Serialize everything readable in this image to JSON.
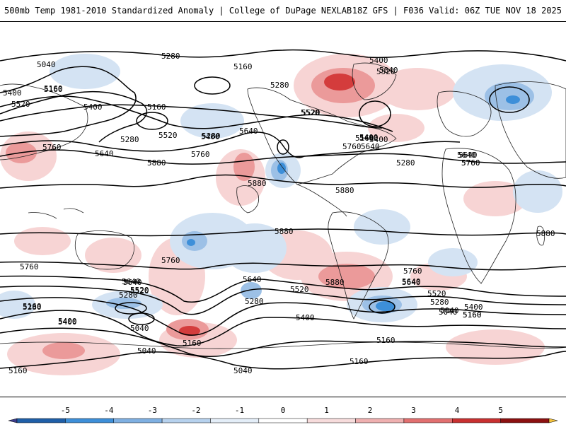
{
  "header": {
    "title": "500mb Temp 1981-2010 Standardized Anomaly | College of DuPage NEXLAB",
    "run_info": "18Z GFS | F036 Valid: 06Z TUE NOV 18 2025"
  },
  "colors": {
    "warm_light": "#f7d4d4",
    "warm_mid": "#eb9a9a",
    "warm_strong": "#d43c3c",
    "cold_light": "#d4e3f3",
    "cold_mid": "#9cc0e6",
    "cold_strong": "#3d8fd9",
    "contour": "#000000",
    "coastline": "#222222"
  },
  "contour_labels": [
    "5040",
    "5280",
    "5160",
    "5400",
    "5520",
    "5280",
    "5160",
    "5280",
    "5520",
    "5400",
    "5160",
    "5640",
    "5520",
    "5280",
    "5400",
    "5640",
    "5760",
    "5880",
    "5760",
    "5640",
    "5280",
    "5160",
    "5040",
    "5400",
    "5520",
    "5760",
    "5400",
    "5640",
    "5880",
    "5880",
    "5880",
    "5760",
    "5640",
    "5760",
    "5640",
    "5520",
    "5280",
    "5280",
    "5640",
    "5520",
    "5760",
    "5640",
    "5520",
    "5400",
    "5280",
    "5160",
    "5040",
    "5400",
    "5160",
    "5040",
    "5160",
    "5400",
    "5880",
    "5760",
    "5640",
    "5520",
    "5400",
    "5280",
    "5160",
    "5040",
    "5040",
    "5160",
    "5160",
    "5040",
    "5160",
    "5880",
    "5640",
    "5520",
    "5760",
    "5400",
    "5400",
    "5160"
  ],
  "colorbar": {
    "ticks": [
      "-5",
      "-4",
      "-3",
      "-2",
      "-1",
      "0",
      "1",
      "2",
      "3",
      "4",
      "5"
    ],
    "segment_colors": [
      "#3c3c8c",
      "#1f5fa8",
      "#3d8fd9",
      "#7fb0e2",
      "#b7d2ee",
      "#e4eef8",
      "#ffffff",
      "#f7dcdc",
      "#efb0b0",
      "#e27070",
      "#c93030",
      "#8c1010",
      "#f5c23c"
    ]
  }
}
